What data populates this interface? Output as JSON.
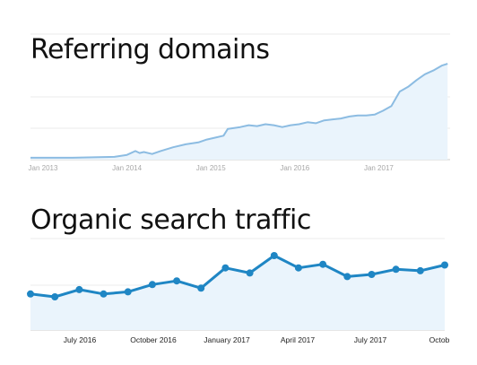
{
  "chart_data": [
    {
      "type": "area",
      "title": "Referring domains",
      "xlabel": "",
      "ylabel": "",
      "x_ticks": [
        "Jan 2013",
        "Jan 2014",
        "Jan 2015",
        "Jan 2016",
        "Jan 2017"
      ],
      "xlim": [
        2013.0,
        2018.0
      ],
      "ylim": [
        0,
        100
      ],
      "grid": true,
      "series": [
        {
          "color": "#8cbce2",
          "x": [
            2013.0,
            2013.5,
            2014.0,
            2014.15,
            2014.25,
            2014.3,
            2014.35,
            2014.45,
            2014.55,
            2014.7,
            2014.85,
            2015.0,
            2015.1,
            2015.2,
            2015.3,
            2015.35,
            2015.5,
            2015.6,
            2015.7,
            2015.8,
            2015.9,
            2016.0,
            2016.1,
            2016.2,
            2016.3,
            2016.4,
            2016.5,
            2016.6,
            2016.7,
            2016.8,
            2016.9,
            2017.0,
            2017.1,
            2017.2,
            2017.3,
            2017.4,
            2017.5,
            2017.6,
            2017.7,
            2017.8,
            2017.9,
            2017.97
          ],
          "values": [
            1,
            1,
            2,
            4,
            8,
            6,
            7,
            5,
            8,
            12,
            15,
            17,
            20,
            22,
            24,
            31,
            33,
            35,
            34,
            36,
            35,
            33,
            35,
            36,
            38,
            37,
            40,
            41,
            42,
            44,
            45,
            45,
            46,
            50,
            55,
            70,
            75,
            82,
            88,
            92,
            97,
            99
          ]
        }
      ]
    },
    {
      "type": "area",
      "title": "Organic search traffic",
      "xlabel": "",
      "ylabel": "",
      "x_ticks": [
        "July 2016",
        "October 2016",
        "January 2017",
        "April 2017",
        "July 2017",
        "Octob"
      ],
      "xlim": [
        0,
        16
      ],
      "ylim": [
        0,
        100
      ],
      "grid": true,
      "series": [
        {
          "color": "#1f86c4",
          "x": [
            0,
            1,
            2,
            3,
            4,
            5,
            6,
            7,
            8,
            9,
            10,
            11,
            12,
            13,
            14,
            15,
            16,
            17
          ],
          "values": [
            42,
            38,
            48,
            42,
            45,
            55,
            60,
            50,
            78,
            71,
            95,
            78,
            83,
            66,
            69,
            76,
            74,
            82
          ]
        }
      ]
    }
  ]
}
